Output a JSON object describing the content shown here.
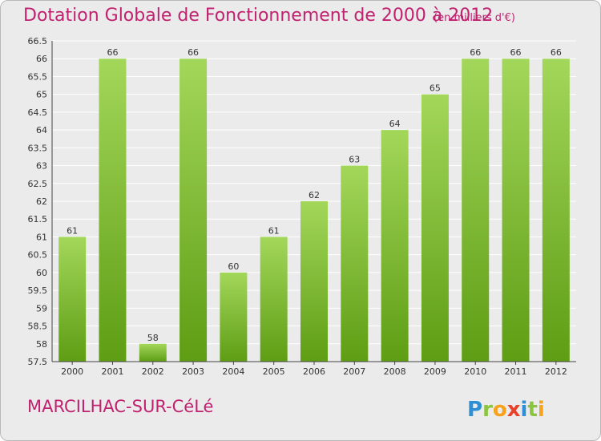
{
  "title": "Dotation Globale de Fonctionnement de 2000 à 2012",
  "subtitle": "(en milliers d'€)",
  "town": "MARCILHAC-SUR-CéLé",
  "logo_text": "Proxiti",
  "colors": {
    "title": "#c0226f",
    "bar_top": "#a3d75a",
    "bar_bottom": "#5e9d14",
    "background": "#ebebeb",
    "grid": "#ffffff"
  },
  "chart_data": {
    "type": "bar",
    "title": "Dotation Globale de Fonctionnement de 2000 à 2012",
    "xlabel": "",
    "ylabel": "",
    "categories": [
      "2000",
      "2001",
      "2002",
      "2003",
      "2004",
      "2005",
      "2006",
      "2007",
      "2008",
      "2009",
      "2010",
      "2011",
      "2012"
    ],
    "values": [
      61,
      66,
      58,
      66,
      60,
      61,
      62,
      63,
      64,
      65,
      66,
      66,
      66
    ],
    "ylim": [
      57.5,
      66.5
    ],
    "yticks": [
      "57.5",
      "58",
      "58.5",
      "59",
      "59.5",
      "60",
      "60.5",
      "61",
      "61.5",
      "62",
      "62.5",
      "63",
      "63.5",
      "64",
      "64.5",
      "65",
      "65.5",
      "66",
      "66.5"
    ],
    "grid": true,
    "legend": "none"
  }
}
